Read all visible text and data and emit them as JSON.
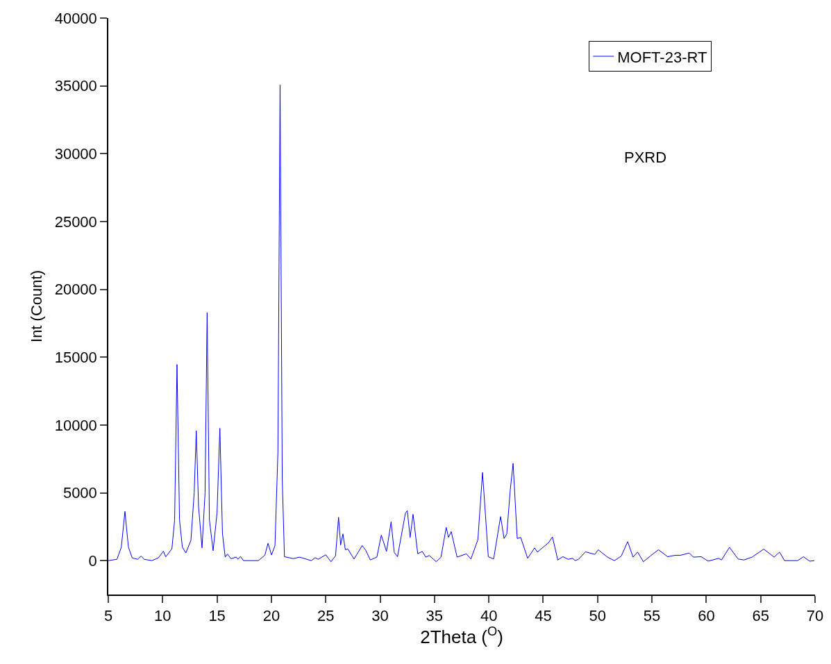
{
  "chart_data": {
    "type": "line",
    "xlabel": "2Theta ($^{O}$)",
    "ylabel": "Int (Count)",
    "annotations": [
      "PXRD"
    ],
    "xlim": [
      5,
      70
    ],
    "xticks": [
      5,
      10,
      15,
      20,
      25,
      30,
      35,
      40,
      45,
      50,
      55,
      60,
      65,
      70
    ],
    "ylim": [
      -2500,
      40000
    ],
    "yticks": [
      0,
      5000,
      10000,
      15000,
      20000,
      25000,
      30000,
      35000,
      40000
    ],
    "grid": false,
    "legend": "top right",
    "marker": "none",
    "line_style": "solid",
    "series": [
      {
        "name": "MOFT-23-RT",
        "color": "#0000ff",
        "x": [
          5.0,
          5.8,
          6.2,
          6.53,
          6.85,
          7.2,
          7.7,
          8.02,
          8.3,
          9.0,
          9.6,
          10.07,
          10.28,
          10.85,
          11.1,
          11.32,
          11.55,
          11.81,
          12.13,
          12.6,
          12.9,
          13.09,
          13.3,
          13.62,
          13.9,
          14.09,
          14.3,
          14.64,
          15.0,
          15.26,
          15.5,
          15.75,
          15.96,
          16.28,
          16.77,
          16.92,
          17.16,
          17.43,
          18.8,
          19.4,
          19.69,
          20.01,
          20.33,
          20.6,
          20.8,
          21.0,
          21.2,
          22.0,
          22.6,
          23.67,
          24.03,
          24.3,
          25.0,
          25.48,
          25.9,
          26.18,
          26.37,
          26.58,
          26.8,
          27.03,
          27.6,
          28.35,
          28.67,
          29.1,
          29.7,
          30.11,
          30.59,
          31.01,
          31.3,
          31.6,
          32.33,
          32.5,
          32.76,
          33.03,
          33.46,
          33.88,
          34.2,
          34.52,
          35.16,
          35.6,
          36.08,
          36.29,
          36.54,
          37.08,
          37.93,
          38.35,
          38.99,
          39.42,
          39.95,
          40.44,
          41.08,
          41.4,
          41.65,
          41.97,
          42.23,
          42.61,
          42.93,
          43.57,
          44.21,
          44.46,
          45.49,
          45.85,
          46.34,
          46.81,
          47.3,
          47.72,
          47.93,
          48.25,
          48.89,
          49.74,
          50.06,
          50.91,
          51.55,
          52.18,
          52.77,
          53.26,
          53.68,
          54.21,
          54.85,
          55.6,
          56.45,
          57.1,
          57.6,
          58.43,
          58.8,
          59.53,
          60.17,
          61.13,
          61.4,
          62.13,
          62.93,
          63.46,
          64.21,
          65.28,
          66.24,
          66.73,
          67.2,
          68.4,
          68.94,
          69.5,
          69.94
        ],
        "values": [
          0,
          100,
          1000,
          3630,
          1000,
          200,
          100,
          340,
          100,
          0,
          200,
          690,
          280,
          870,
          3000,
          14460,
          3000,
          1000,
          565,
          1500,
          5000,
          9580,
          4000,
          940,
          5000,
          18280,
          3000,
          735,
          3500,
          9760,
          2000,
          260,
          480,
          140,
          260,
          100,
          310,
          0,
          0,
          400,
          1280,
          420,
          1100,
          8000,
          35070,
          6000,
          290,
          150,
          260,
          0,
          220,
          100,
          430,
          -80,
          360,
          3200,
          1150,
          1970,
          800,
          860,
          120,
          1110,
          770,
          50,
          260,
          1880,
          680,
          2860,
          600,
          290,
          3510,
          3680,
          1710,
          3420,
          510,
          680,
          260,
          380,
          -80,
          260,
          2450,
          1710,
          2140,
          260,
          500,
          120,
          1540,
          6500,
          290,
          120,
          3250,
          1630,
          1970,
          5220,
          7170,
          1630,
          1710,
          170,
          940,
          630,
          1320,
          1750,
          50,
          290,
          100,
          170,
          0,
          100,
          650,
          460,
          800,
          260,
          0,
          340,
          1400,
          260,
          630,
          -80,
          340,
          800,
          290,
          390,
          390,
          560,
          260,
          290,
          -40,
          170,
          50,
          980,
          120,
          50,
          260,
          850,
          260,
          630,
          0,
          0,
          290,
          -40,
          0
        ]
      }
    ]
  }
}
